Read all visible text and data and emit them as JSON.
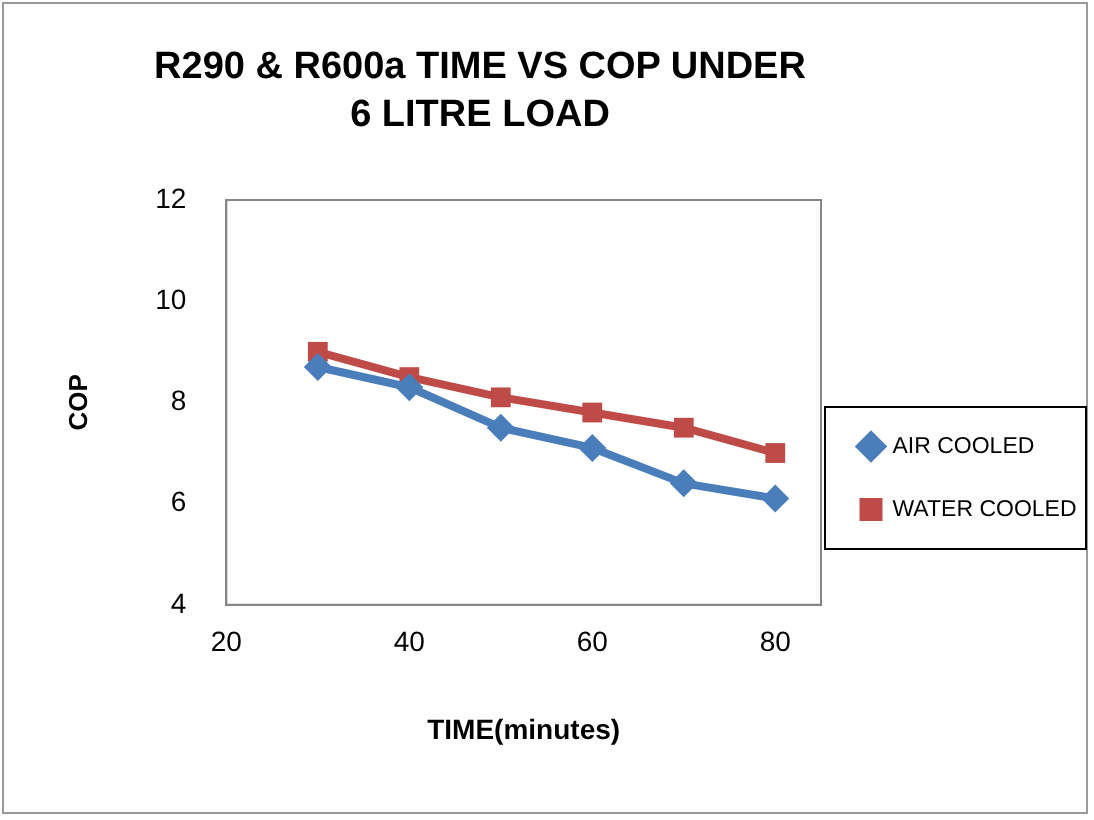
{
  "chart_data": {
    "type": "line",
    "title": "R290 & R600a  TIME VS COP UNDER 6 LITRE LOAD",
    "xlabel": "TIME(minutes)",
    "ylabel": "COP",
    "x": [
      30,
      40,
      50,
      60,
      70,
      80
    ],
    "series": [
      {
        "name": "AIR COOLED",
        "color": "#4a7ebb",
        "marker": "diamond",
        "values": [
          8.7,
          8.3,
          7.5,
          7.1,
          6.4,
          6.1
        ]
      },
      {
        "name": "WATER COOLED",
        "color": "#be4b48",
        "marker": "square",
        "values": [
          9.0,
          8.5,
          8.1,
          7.8,
          7.5,
          7.0
        ]
      }
    ],
    "xlim": [
      20,
      85
    ],
    "xticks": [
      20,
      40,
      60,
      80
    ],
    "ylim": [
      4,
      12
    ],
    "yticks": [
      4,
      6,
      8,
      10,
      12
    ],
    "grid": false,
    "legend": "right",
    "line_style": "solid"
  }
}
